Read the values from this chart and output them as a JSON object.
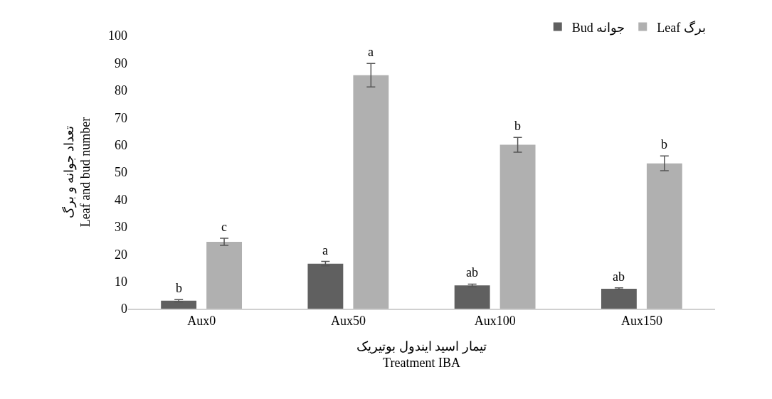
{
  "chart_data": {
    "type": "bar",
    "xlabel": "تیمار اسید ایندول بوتیریک\nTreatment IBA",
    "ylabel": "تعداد جوانه و برگ\nLeaf and bud number",
    "categories": [
      "Aux0",
      "Aux50",
      "Aux100",
      "Aux150"
    ],
    "series": [
      {
        "name": "Bud جوانه",
        "color": "#606060",
        "values": [
          2.9,
          16.5,
          8.5,
          7.3
        ],
        "errors": [
          0.4,
          0.8,
          0.5,
          0.3
        ],
        "value_labels": [
          "b",
          "a",
          "ab",
          "ab"
        ]
      },
      {
        "name": "Leaf برگ",
        "color": "#b0b0b0",
        "values": [
          24.5,
          85.5,
          60,
          53.2
        ],
        "errors": [
          1.3,
          4.3,
          2.7,
          2.7
        ],
        "value_labels": [
          "c",
          "a",
          "b",
          "b"
        ]
      }
    ],
    "ylim": [
      0,
      100
    ],
    "yticks": [
      0,
      10,
      20,
      30,
      40,
      50,
      60,
      70,
      80,
      90,
      100
    ],
    "grid": false,
    "legend": "top right"
  }
}
